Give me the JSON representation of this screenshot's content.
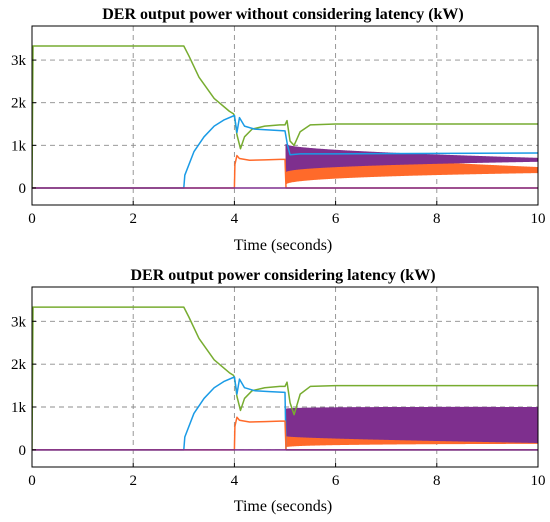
{
  "colors": {
    "green": "#77ac30",
    "blue": "#1a9be6",
    "orange": "#ff6a2a",
    "purple": "#7e2f8e",
    "grid": "#8c8c8c",
    "axis": "#000000"
  },
  "chart_data": [
    {
      "type": "line",
      "title": "DER output power without considering latency (kW)",
      "xlabel": "Time (seconds)",
      "ylabel": "",
      "xlim": [
        0,
        10
      ],
      "ylim": [
        -400,
        3800
      ],
      "xticks": [
        0,
        2,
        4,
        6,
        8,
        10
      ],
      "xtick_labels": [
        "0",
        "2",
        "4",
        "6",
        "8",
        "10"
      ],
      "yticks": [
        0,
        1000,
        2000,
        3000
      ],
      "ytick_labels": [
        "0",
        "1k",
        "2k",
        "3k"
      ],
      "grid": true,
      "legend": "none",
      "series": [
        {
          "color": "green",
          "x": [
            0,
            0.02,
            3.0,
            3.1,
            3.3,
            3.6,
            3.9,
            3.98,
            4.0,
            4.05,
            4.12,
            4.2,
            4.35,
            4.6,
            4.9,
            5.0,
            5.04,
            5.1,
            5.18,
            5.3,
            5.5,
            6.0,
            10
          ],
          "y": [
            0,
            3330,
            3330,
            3100,
            2600,
            2100,
            1800,
            1740,
            1700,
            1250,
            920,
            1200,
            1380,
            1450,
            1480,
            1480,
            1580,
            1100,
            1000,
            1320,
            1480,
            1500,
            1500
          ]
        },
        {
          "color": "blue",
          "x": [
            0,
            3.0,
            3.02,
            3.2,
            3.4,
            3.6,
            3.8,
            4.0,
            4.05,
            4.1,
            4.2,
            4.4,
            4.7,
            5.0,
            5.05,
            5.1,
            5.3,
            5.6,
            6.0,
            10
          ],
          "y": [
            0,
            0,
            300,
            850,
            1200,
            1450,
            1600,
            1700,
            1300,
            1650,
            1450,
            1380,
            1360,
            1340,
            1000,
            780,
            800,
            800,
            800,
            820
          ]
        },
        {
          "color": "orange",
          "x": [
            0,
            4.0,
            4.01,
            4.05,
            4.1,
            4.3,
            4.6,
            4.9,
            5.0,
            5.02,
            10
          ],
          "y": [
            0,
            0,
            550,
            760,
            690,
            650,
            660,
            670,
            670,
            0,
            0
          ]
        },
        {
          "color": "purple",
          "x": [
            0,
            5.0,
            10
          ],
          "y": [
            0,
            0,
            0
          ]
        }
      ],
      "oscillations": [
        {
          "color": "orange",
          "start": 5.02,
          "end": 10,
          "center_start": 500,
          "center_end": 420,
          "amp_start": 420,
          "amp_end": 70
        },
        {
          "color": "purple",
          "start": 5.02,
          "end": 10,
          "center_start": 700,
          "center_end": 660,
          "amp_start": 330,
          "amp_end": 45
        }
      ]
    },
    {
      "type": "line",
      "title": "DER output power considering latency (kW)",
      "xlabel": "Time (seconds)",
      "ylabel": "",
      "xlim": [
        0,
        10
      ],
      "ylim": [
        -400,
        3800
      ],
      "xticks": [
        0,
        2,
        4,
        6,
        8,
        10
      ],
      "xtick_labels": [
        "0",
        "2",
        "4",
        "6",
        "8",
        "10"
      ],
      "yticks": [
        0,
        1000,
        2000,
        3000
      ],
      "ytick_labels": [
        "0",
        "1k",
        "2k",
        "3k"
      ],
      "grid": true,
      "legend": "none",
      "series": [
        {
          "color": "green",
          "x": [
            0,
            0.02,
            3.0,
            3.1,
            3.3,
            3.6,
            3.9,
            3.98,
            4.0,
            4.05,
            4.12,
            4.2,
            4.35,
            4.6,
            4.9,
            5.0,
            5.04,
            5.1,
            5.18,
            5.3,
            5.5,
            6.0,
            10
          ],
          "y": [
            0,
            3330,
            3330,
            3100,
            2600,
            2100,
            1800,
            1740,
            1700,
            1250,
            920,
            1200,
            1380,
            1450,
            1480,
            1480,
            1580,
            1100,
            820,
            1300,
            1480,
            1500,
            1500
          ]
        },
        {
          "color": "blue",
          "x": [
            0,
            3.0,
            3.02,
            3.2,
            3.4,
            3.6,
            3.8,
            4.0,
            4.05,
            4.1,
            4.2,
            4.4,
            4.7,
            5.0,
            5.02,
            10
          ],
          "y": [
            0,
            0,
            300,
            850,
            1200,
            1450,
            1600,
            1700,
            1300,
            1650,
            1450,
            1380,
            1360,
            1340,
            0,
            0
          ]
        },
        {
          "color": "orange",
          "x": [
            0,
            4.0,
            4.01,
            4.05,
            4.1,
            4.3,
            4.6,
            4.9,
            5.0,
            5.02,
            10
          ],
          "y": [
            0,
            0,
            550,
            760,
            690,
            650,
            660,
            670,
            670,
            0,
            0
          ]
        },
        {
          "color": "purple",
          "x": [
            0,
            5.0,
            10
          ],
          "y": [
            0,
            0,
            0
          ]
        }
      ],
      "oscillations": [
        {
          "color": "orange",
          "start": 5.02,
          "end": 10,
          "center_start": 480,
          "center_end": 420,
          "amp_start": 420,
          "amp_end": 280
        },
        {
          "color": "purple",
          "start": 5.02,
          "end": 10,
          "center_start": 640,
          "center_end": 580,
          "amp_start": 320,
          "amp_end": 420
        }
      ]
    }
  ]
}
